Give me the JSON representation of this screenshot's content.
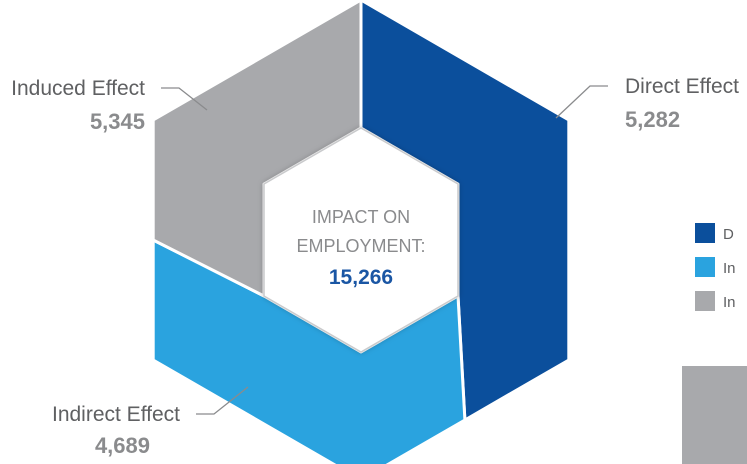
{
  "chart_data": {
    "type": "pie",
    "title": "IMPACT ON EMPLOYMENT:",
    "total": 15266,
    "total_label": "15,266",
    "categories": [
      "Direct Effect",
      "Indirect Effect",
      "Induced Effect"
    ],
    "values": [
      5282,
      4689,
      5345
    ],
    "value_labels": [
      "5,282",
      "4,689",
      "5,345"
    ],
    "colors": [
      "#0b4f9c",
      "#2aa3df",
      "#a8a9ac"
    ],
    "legend": {
      "placement": "right",
      "entries": [
        "D",
        "In",
        "In"
      ]
    }
  }
}
